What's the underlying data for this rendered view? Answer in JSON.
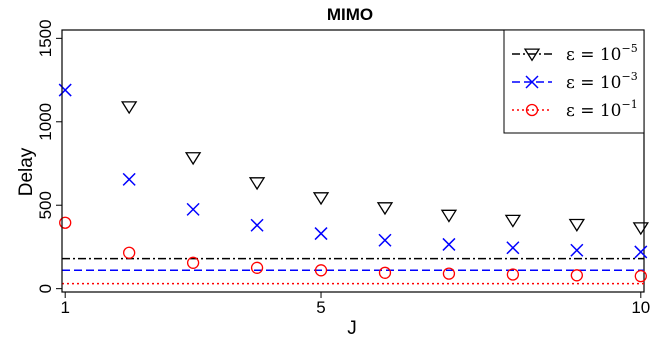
{
  "chart_data": {
    "type": "scatter",
    "title": "MIMO",
    "xlabel": "J",
    "ylabel": "Delay",
    "xlim": [
      0.95,
      10.05
    ],
    "ylim": [
      -20,
      1550
    ],
    "x": [
      1,
      2,
      3,
      4,
      5,
      6,
      7,
      8,
      9,
      10
    ],
    "xticks": [
      "1",
      "5",
      "10"
    ],
    "xtick_values": [
      1,
      5,
      10
    ],
    "yticks": [
      "0",
      "500",
      "1000",
      "1500"
    ],
    "ytick_values": [
      0,
      500,
      1000,
      1500
    ],
    "grid": false,
    "legend_position": "top-right",
    "series": [
      {
        "name": "ε = 10^-5",
        "legend_base": "ε = 10",
        "legend_exp": "−5",
        "marker": "triangle-down",
        "color": "#000000",
        "line_style": "dot-dash",
        "values": [
          null,
          1090,
          785,
          635,
          545,
          485,
          440,
          410,
          385,
          365
        ],
        "hline": 180
      },
      {
        "name": "ε = 10^-3",
        "legend_base": "ε = 10",
        "legend_exp": "−3",
        "marker": "x",
        "color": "#0000ff",
        "line_style": "dashed",
        "values": [
          1190,
          655,
          475,
          380,
          330,
          290,
          265,
          245,
          230,
          220
        ],
        "hline": 110
      },
      {
        "name": "ε = 10^-1",
        "legend_base": "ε = 10",
        "legend_exp": "−1",
        "marker": "circle",
        "color": "#ff0000",
        "line_style": "dotted",
        "values": [
          395,
          215,
          155,
          125,
          110,
          95,
          90,
          85,
          80,
          75
        ],
        "hline": 30
      }
    ]
  }
}
